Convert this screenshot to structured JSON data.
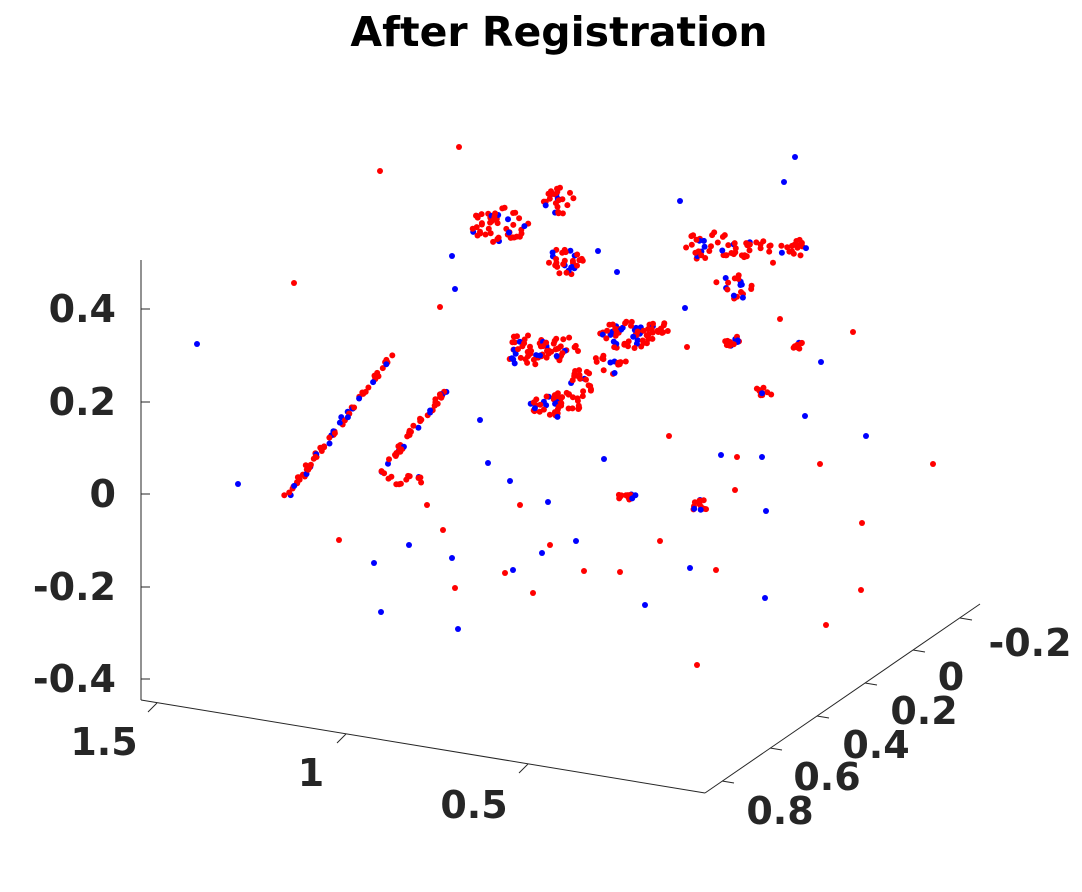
{
  "chart_data": {
    "type": "scatter3d",
    "title": "After Registration",
    "xlabel": "",
    "ylabel": "",
    "zlabel": "",
    "grid": false,
    "axes": {
      "z_ticks": [
        "0.4",
        "0.2",
        "0",
        "-0.2",
        "-0.4"
      ],
      "x_ticks": [
        "1.5",
        "1",
        "0.5"
      ],
      "y_ticks": [
        "-0.2",
        "0",
        "0.2",
        "0.4",
        "0.6",
        "0.8"
      ]
    },
    "series": [
      {
        "color": "#0000ff",
        "marker": "point"
      },
      {
        "color": "#ff0000",
        "marker": "point"
      }
    ]
  }
}
